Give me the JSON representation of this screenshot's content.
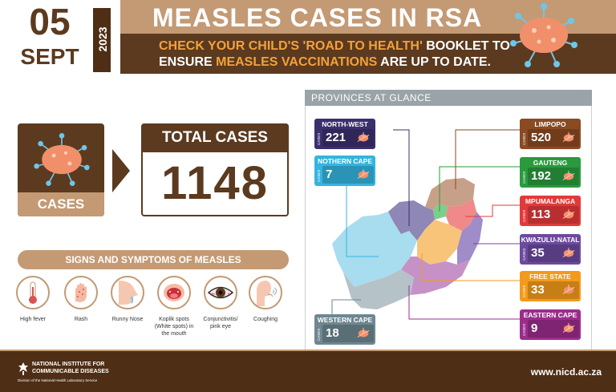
{
  "header": {
    "date_day": "05",
    "date_month": "SEPT",
    "year": "2023",
    "title": "MEASLES CASES IN RSA",
    "subtitle_line1_a": "CHECK YOUR CHILD'S ",
    "subtitle_line1_b": "'ROAD TO HEALTH'",
    "subtitle_line1_c": " BOOKLET TO",
    "subtitle_line2_a": "ENSURE ",
    "subtitle_line2_b": "MEASLES VACCINATIONS",
    "subtitle_line2_c": " ARE UP TO DATE.",
    "icon": "measles-virus-icon"
  },
  "cases": {
    "label": "CASES",
    "total_title": "TOTAL CASES",
    "total_value": "1148"
  },
  "symptoms": {
    "title": "SIGNS AND SYMPTOMS OF MEASLES",
    "items": [
      {
        "label": "High fever",
        "icon": "thermometer-icon"
      },
      {
        "label": "Rash",
        "icon": "rash-hand-icon"
      },
      {
        "label": "Runny Nose",
        "icon": "runny-nose-icon"
      },
      {
        "label": "Koplik spots (White spots) in the mouth",
        "icon": "open-mouth-icon"
      },
      {
        "label": "Conjunctivitis/ pink eye",
        "icon": "pink-eye-icon"
      },
      {
        "label": "Coughing",
        "icon": "coughing-icon"
      }
    ]
  },
  "provinces": {
    "title": "PROVINCES AT GLANCE",
    "side_label": "CASES",
    "items": [
      {
        "name": "NORTH-WEST",
        "value": "221",
        "color": "#3b2f6e"
      },
      {
        "name": "NOTHERN CAPE",
        "value": "7",
        "color": "#35b4df"
      },
      {
        "name": "WESTERN CAPE",
        "value": "18",
        "color": "#6e8791"
      },
      {
        "name": "LIMPOPO",
        "value": "520",
        "color": "#8a4a22"
      },
      {
        "name": "GAUTENG",
        "value": "192",
        "color": "#2a9a3d"
      },
      {
        "name": "MPUMALANGA",
        "value": "113",
        "color": "#e23a3a"
      },
      {
        "name": "KWAZULU-NATAL",
        "value": "35",
        "color": "#6c4a9e"
      },
      {
        "name": "FREE STATE",
        "value": "33",
        "color": "#f39a1c"
      },
      {
        "name": "EASTERN CAPE",
        "value": "9",
        "color": "#9a2d8c"
      }
    ]
  },
  "footer": {
    "org_line1": "NATIONAL INSTITUTE FOR",
    "org_line2": "COMMUNICABLE DISEASES",
    "org_division": "Division of the National Health Laboratory Service",
    "url": "www.nicd.ac.za"
  },
  "colors": {
    "brown_dark": "#5b3a1f",
    "tan": "#c39a74",
    "accent_orange": "#f3a23a"
  }
}
